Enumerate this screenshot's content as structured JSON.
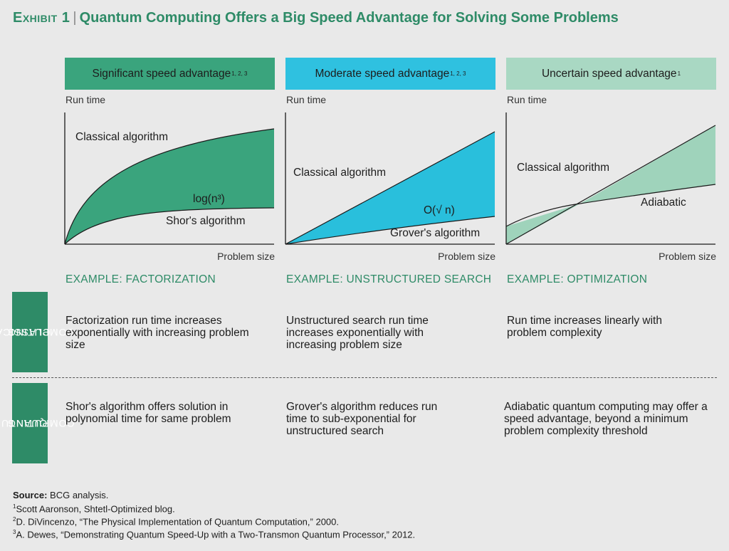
{
  "title": {
    "exhibit": "Exhibit 1",
    "separator": "|",
    "text": "Quantum Computing Offers a Big Speed Advantage for Solving Some Problems"
  },
  "colors": {
    "green": "#2e8b67",
    "green_light_fill": "#9fd3bb",
    "cyan": "#29bfdc",
    "header1": "#3aa47d",
    "header2": "#2fc1e0",
    "header3": "#a9d8c3"
  },
  "panels": [
    {
      "header": "Significant speed advantage",
      "header_sup": "1, 2, 3",
      "y_label": "Run time",
      "x_label": "Problem size",
      "curve_labels": [
        "Classical algorithm",
        "log(n³)",
        "Shor's algorithm"
      ],
      "example": "EXAMPLE: FACTORIZATION",
      "classical_text": "Factorization run time increases exponentially with increasing problem size",
      "quantum_text": "Shor's algorithm offers solution in polynomial time for same problem"
    },
    {
      "header": "Moderate speed advantage",
      "header_sup": "1, 2, 3",
      "y_label": "Run time",
      "x_label": "Problem size",
      "curve_labels": [
        "Classical algorithm",
        "O(√ n)",
        "Grover's algorithm"
      ],
      "example": "EXAMPLE: UNSTRUCTURED SEARCH",
      "classical_text": "Unstructured search run time increases exponentially with increasing problem size",
      "quantum_text": "Grover's algorithm reduces run time to sub-exponential for unstructured search"
    },
    {
      "header": "Uncertain speed advantage",
      "header_sup": "1",
      "y_label": "Run time",
      "x_label": "Problem size",
      "curve_labels": [
        "Classical algorithm",
        "Adiabatic"
      ],
      "example": "EXAMPLE: OPTIMIZATION",
      "classical_text": "Run time increases linearly with problem complexity",
      "quantum_text": "Adiabatic quantum computing may offer a speed advantage, beyond a minimum problem complexity threshold"
    }
  ],
  "side_labels": {
    "classical": [
      "CLASSICAL",
      "COMPUTING"
    ],
    "quantum": [
      "QUANTUM",
      "COMPUTING"
    ]
  },
  "footer": {
    "source_label": "Source:",
    "source_text": "BCG analysis.",
    "notes": [
      {
        "num": "1",
        "text": "Scott Aaronson, Shtetl-Optimized blog."
      },
      {
        "num": "2",
        "text": "D. DiVincenzo, “The Physical Implementation of Quantum Computation,” 2000."
      },
      {
        "num": "3",
        "text": "A. Dewes, “Demonstrating Quantum Speed-Up with a Two-Transmon Quantum Processor,” 2012."
      }
    ]
  }
}
